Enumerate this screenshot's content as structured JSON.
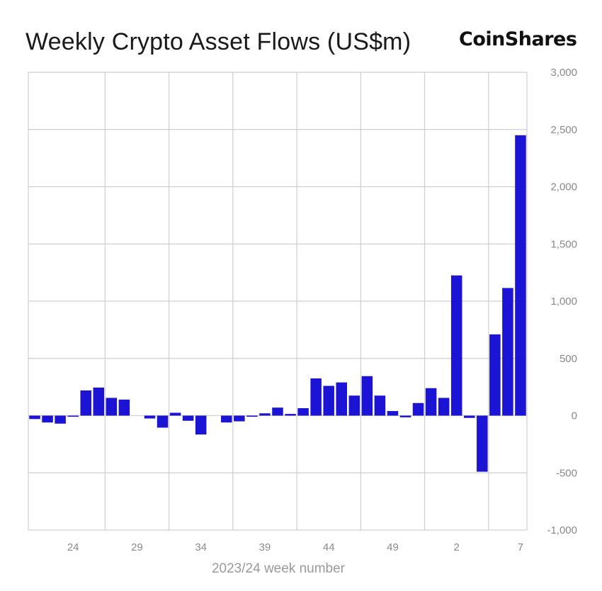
{
  "header": {
    "title": "Weekly Crypto Asset Flows (US$m)",
    "brand": "CoinShares"
  },
  "colors": {
    "bar": "#1c14d4",
    "grid": "#cfcfcf",
    "axis_text": "#8a8a8a"
  },
  "chart_data": {
    "type": "bar",
    "title": "Weekly Crypto Asset Flows (US$m)",
    "xlabel": "2023/24 week number",
    "ylabel": "",
    "ylim": [
      -1000,
      3000
    ],
    "yticks": [
      "3,000",
      "2,500",
      "2,000",
      "1,500",
      "1,000",
      "500",
      "0",
      "-500",
      "-1,000"
    ],
    "ytick_values": [
      3000,
      2500,
      2000,
      1500,
      1000,
      500,
      0,
      -500,
      -1000
    ],
    "xtick_labels": [
      "24",
      "29",
      "34",
      "39",
      "44",
      "49",
      "2",
      "7"
    ],
    "xtick_categories": [
      "24",
      "29",
      "34",
      "39",
      "44",
      "49",
      "2",
      "7"
    ],
    "grid": true,
    "y_axis_side": "right",
    "categories": [
      "21",
      "22",
      "23",
      "24",
      "25",
      "26",
      "27",
      "28",
      "29",
      "30",
      "31",
      "32",
      "33",
      "34",
      "35",
      "36",
      "37",
      "38",
      "39",
      "40",
      "41",
      "42",
      "43",
      "44",
      "45",
      "46",
      "47",
      "48",
      "49",
      "50",
      "51",
      "52",
      "1",
      "2",
      "3",
      "4",
      "5",
      "6",
      "7"
    ],
    "values": [
      -30,
      -60,
      -70,
      -10,
      220,
      245,
      155,
      140,
      0,
      -25,
      -105,
      25,
      -45,
      -165,
      0,
      -60,
      -50,
      -10,
      20,
      70,
      15,
      65,
      325,
      260,
      290,
      175,
      345,
      175,
      40,
      -15,
      110,
      240,
      155,
      1225,
      -20,
      -490,
      710,
      1115,
      2450
    ]
  }
}
